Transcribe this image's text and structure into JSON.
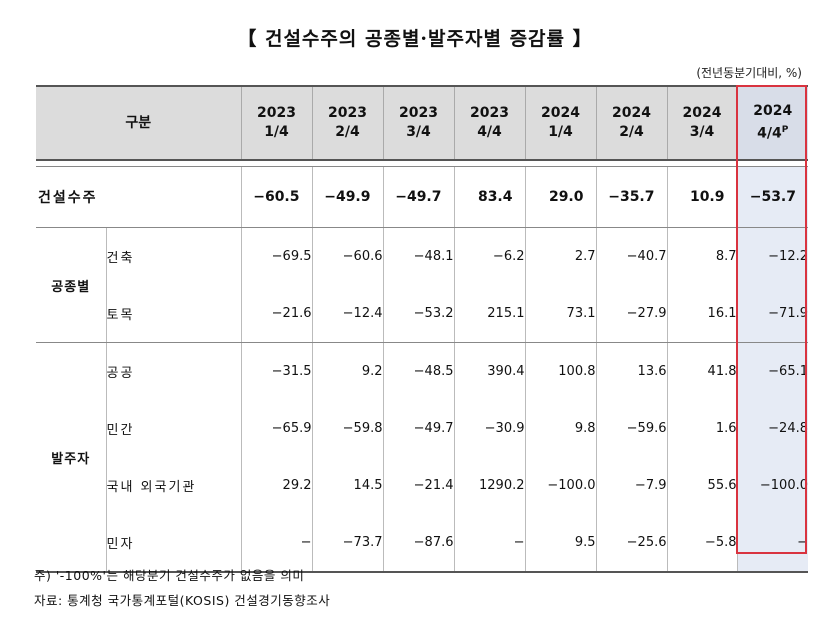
{
  "title": "【 건설수주의 공종별·발주자별 증감률 】",
  "unit": "(전년동분기대비, %)",
  "header": {
    "category": "구분",
    "periods": [
      {
        "year": "2023",
        "q": "1/4",
        "sup": ""
      },
      {
        "year": "2023",
        "q": "2/4",
        "sup": ""
      },
      {
        "year": "2023",
        "q": "3/4",
        "sup": ""
      },
      {
        "year": "2023",
        "q": "4/4",
        "sup": ""
      },
      {
        "year": "2024",
        "q": "1/4",
        "sup": ""
      },
      {
        "year": "2024",
        "q": "2/4",
        "sup": ""
      },
      {
        "year": "2024",
        "q": "3/4",
        "sup": ""
      },
      {
        "year": "2024",
        "q": "4/4",
        "sup": "P"
      }
    ]
  },
  "total": {
    "label": "건설수주",
    "values": [
      "-60.5",
      "-49.9",
      "-49.7",
      "83.4",
      "29.0",
      "-35.7",
      "10.9",
      "-53.7"
    ]
  },
  "groups": [
    {
      "label": "공종별",
      "rows": [
        {
          "label": "건축",
          "values": [
            "-69.5",
            "-60.6",
            "-48.1",
            "-6.2",
            "2.7",
            "-40.7",
            "8.7",
            "-12.2"
          ]
        },
        {
          "label": "토목",
          "values": [
            "-21.6",
            "-12.4",
            "-53.2",
            "215.1",
            "73.1",
            "-27.9",
            "16.1",
            "-71.9"
          ]
        }
      ]
    },
    {
      "label": "발주자",
      "rows": [
        {
          "label": "공공",
          "values": [
            "-31.5",
            "9.2",
            "-48.5",
            "390.4",
            "100.8",
            "13.6",
            "41.8",
            "-65.1"
          ]
        },
        {
          "label": "민간",
          "values": [
            "-65.9",
            "-59.8",
            "-49.7",
            "-30.9",
            "9.8",
            "-59.6",
            "1.6",
            "-24.8"
          ]
        },
        {
          "label": "국내 외국기관",
          "values": [
            "29.2",
            "14.5",
            "-21.4",
            "1290.2",
            "-100.0",
            "-7.9",
            "55.6",
            "-100.0"
          ]
        },
        {
          "label": "민자",
          "values": [
            "-",
            "-73.7",
            "-87.6",
            "-",
            "9.5",
            "-25.6",
            "-5.8",
            "-"
          ]
        }
      ]
    }
  ],
  "notes": [
    "주) '-100%'는 해당분기 건설수주가 없음을 의미",
    "자료: 통계청 국가통계포털(KOSIS) 건설경기동향조사"
  ],
  "highlight_color": "#d9333f"
}
